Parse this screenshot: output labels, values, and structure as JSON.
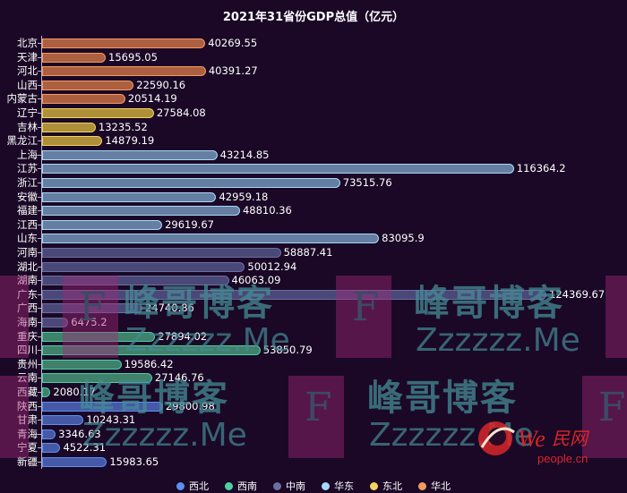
{
  "title": "2021年31省份GDP总值（亿元）",
  "colors": {
    "background": "#1a0826",
    "西北": "#5b8ff0",
    "西南": "#4dcfa3",
    "中南": "#6a6f9e",
    "华东": "#a8d8f8",
    "东北": "#f3d35c",
    "华北": "#f29a5e"
  },
  "legend": [
    {
      "name": "西北",
      "color": "#5b8ff0"
    },
    {
      "name": "西南",
      "color": "#4dcfa3"
    },
    {
      "name": "中南",
      "color": "#6a6f9e"
    },
    {
      "name": "华东",
      "color": "#a8d8f8"
    },
    {
      "name": "东北",
      "color": "#f3d35c"
    },
    {
      "name": "华北",
      "color": "#f29a5e"
    }
  ],
  "watermark": {
    "cn": "峰哥博客",
    "en": "Zzzzzz.Me",
    "letter": "F",
    "logo": "people.cn"
  },
  "chart_data": {
    "type": "bar",
    "orientation": "horizontal",
    "title": "2021年31省份GDP总值（亿元）",
    "xlabel": "",
    "ylabel": "",
    "unit": "亿元",
    "grid": false,
    "legend_position": "bottom",
    "xlim": [
      0,
      124369.67
    ],
    "categories": [
      "北京",
      "天津",
      "河北",
      "山西",
      "内蒙古",
      "辽宁",
      "吉林",
      "黑龙江",
      "上海",
      "江苏",
      "浙江",
      "安徽",
      "福建",
      "江西",
      "山东",
      "河南",
      "湖北",
      "湖南",
      "广东",
      "广西",
      "海南",
      "重庆",
      "四川",
      "贵州",
      "云南",
      "西藏",
      "陕西",
      "甘肃",
      "青海",
      "宁夏",
      "新疆"
    ],
    "values": [
      40269.55,
      15695.05,
      40391.27,
      22590.16,
      20514.19,
      27584.08,
      13235.52,
      14879.19,
      43214.85,
      116364.2,
      73515.76,
      42959.18,
      48810.36,
      29619.67,
      83095.9,
      58887.41,
      50012.94,
      46063.09,
      124369.67,
      24740.86,
      6475.2,
      27894.02,
      53850.79,
      19586.42,
      27146.76,
      2080.17,
      29800.98,
      10243.31,
      3346.63,
      4522.31,
      15983.65
    ],
    "labels": [
      "40269.55",
      "15695.05",
      "40391.27",
      "22590.16",
      "20514.19",
      "27584.08",
      "13235.52",
      "14879.19",
      "43214.85",
      "116364.2",
      "73515.76",
      "42959.18",
      "48810.36",
      "29619.67",
      "83095.9",
      "58887.41",
      "50012.94",
      "46063.09",
      "124369.67",
      "24740.86",
      "6475.2",
      "27894.02",
      "53850.79",
      "19586.42",
      "27146.76",
      "2080.17",
      "29800.98",
      "10243.31",
      "3346.63",
      "4522.31",
      "15983.65"
    ],
    "region": [
      "华北",
      "华北",
      "华北",
      "华北",
      "华北",
      "东北",
      "东北",
      "东北",
      "华东",
      "华东",
      "华东",
      "华东",
      "华东",
      "华东",
      "华东",
      "中南",
      "中南",
      "中南",
      "中南",
      "中南",
      "中南",
      "西南",
      "西南",
      "西南",
      "西南",
      "西南",
      "西北",
      "西北",
      "西北",
      "西北",
      "西北"
    ],
    "series": [
      {
        "name": "华北",
        "categories": [
          "北京",
          "天津",
          "河北",
          "山西",
          "内蒙古"
        ],
        "values": [
          40269.55,
          15695.05,
          40391.27,
          22590.16,
          20514.19
        ]
      },
      {
        "name": "东北",
        "categories": [
          "辽宁",
          "吉林",
          "黑龙江"
        ],
        "values": [
          27584.08,
          13235.52,
          14879.19
        ]
      },
      {
        "name": "华东",
        "categories": [
          "上海",
          "江苏",
          "浙江",
          "安徽",
          "福建",
          "江西",
          "山东"
        ],
        "values": [
          43214.85,
          116364.2,
          73515.76,
          42959.18,
          48810.36,
          29619.67,
          83095.9
        ]
      },
      {
        "name": "中南",
        "categories": [
          "河南",
          "湖北",
          "湖南",
          "广东",
          "广西",
          "海南"
        ],
        "values": [
          58887.41,
          50012.94,
          46063.09,
          124369.67,
          24740.86,
          6475.2
        ]
      },
      {
        "name": "西南",
        "categories": [
          "重庆",
          "四川",
          "贵州",
          "云南",
          "西藏"
        ],
        "values": [
          27894.02,
          53850.79,
          19586.42,
          27146.76,
          2080.17
        ]
      },
      {
        "name": "西北",
        "categories": [
          "陕西",
          "甘肃",
          "青海",
          "宁夏",
          "新疆"
        ],
        "values": [
          29800.98,
          10243.31,
          3346.63,
          4522.31,
          15983.65
        ]
      }
    ]
  }
}
